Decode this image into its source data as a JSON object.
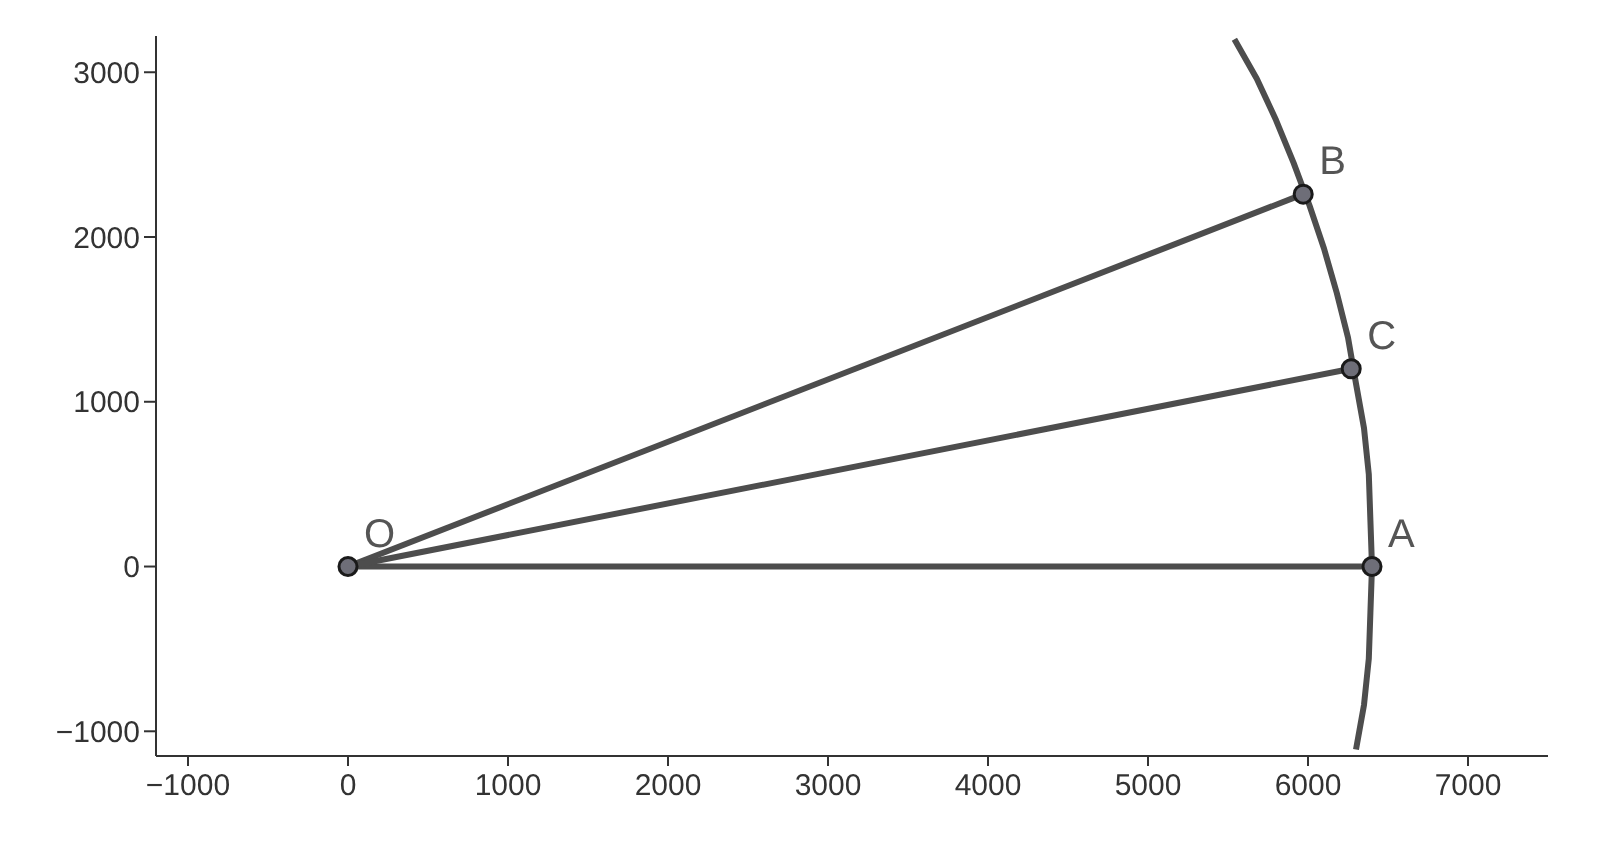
{
  "chart_data": {
    "type": "line",
    "xlim": [
      -1200,
      7500
    ],
    "ylim": [
      -1150,
      3220
    ],
    "xticks": [
      {
        "value": -1000,
        "label": "−1000"
      },
      0,
      1000,
      2000,
      3000,
      4000,
      5000,
      6000,
      7000
    ],
    "yticks": [
      {
        "value": -1000,
        "label": "−1000"
      },
      0,
      1000,
      2000,
      3000
    ],
    "grid": false,
    "marker": "none",
    "line_style": "solid",
    "annotations": [
      {
        "text": "O",
        "x": 0,
        "y": 0
      },
      {
        "text": "A",
        "x": 6400,
        "y": 0
      },
      {
        "text": "B",
        "x": 5970,
        "y": 2260
      },
      {
        "text": "C",
        "x": 6270,
        "y": 1200
      }
    ],
    "series": [
      {
        "color": "#4d4d4d",
        "x": [
          0,
          6400
        ],
        "values": [
          0,
          0
        ]
      },
      {
        "color": "#4d4d4d",
        "x": [
          0,
          5970
        ],
        "values": [
          0,
          2260
        ]
      },
      {
        "color": "#4d4d4d",
        "x": [
          0,
          6270
        ],
        "values": [
          0,
          1200
        ]
      },
      {
        "color": "#4d4d4d",
        "x": [
          6300,
          6350,
          6380,
          6390,
          6400,
          6390,
          6380,
          6350,
          6300,
          6250,
          6180,
          6100,
          6010,
          5910,
          5800,
          5680,
          5540
        ],
        "values": [
          -1110,
          -840,
          -560,
          -280,
          0,
          280,
          560,
          840,
          1110,
          1390,
          1660,
          1930,
          2190,
          2450,
          2710,
          2960,
          3200
        ]
      },
      {
        "type": "scatter",
        "marker": "circle",
        "color": "#6e6e78",
        "x": [
          0,
          6400,
          5970,
          6270
        ],
        "values": [
          0,
          0,
          2260,
          1200
        ]
      }
    ]
  }
}
